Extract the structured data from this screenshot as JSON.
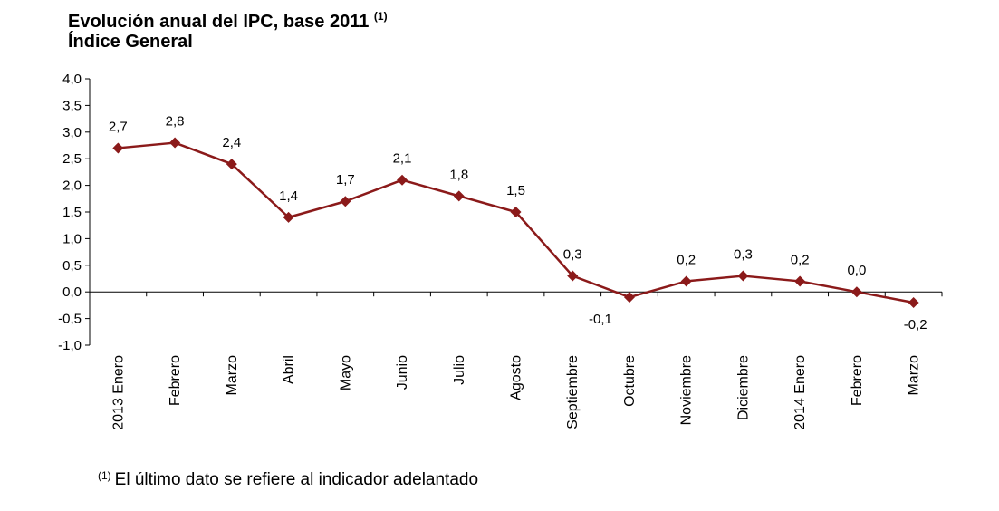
{
  "chart_data": {
    "type": "line",
    "title": "Evolución anual del IPC, base 2011",
    "title_note": "(1)",
    "subtitle": "Índice General",
    "categories": [
      "2013 Enero",
      "Febrero",
      "Marzo",
      "Abril",
      "Mayo",
      "Junio",
      "Julio",
      "Agosto",
      "Septiembre",
      "Octubre",
      "Noviembre",
      "Diciembre",
      "2014 Enero",
      "Febrero",
      "Marzo"
    ],
    "values": [
      2.7,
      2.8,
      2.4,
      1.4,
      1.7,
      2.1,
      1.8,
      1.5,
      0.3,
      -0.1,
      0.2,
      0.3,
      0.2,
      0.0,
      -0.2
    ],
    "data_labels": [
      "2,7",
      "2,8",
      "2,4",
      "1,4",
      "1,7",
      "2,1",
      "1,8",
      "1,5",
      "0,3",
      "-0,1",
      "0,2",
      "0,3",
      "0,2",
      "0,0",
      "-0,2"
    ],
    "ylim": [
      -1.0,
      4.0
    ],
    "yticks": [
      -1.0,
      -0.5,
      0.0,
      0.5,
      1.0,
      1.5,
      2.0,
      2.5,
      3.0,
      3.5,
      4.0
    ],
    "ytick_labels": [
      "-1,0",
      "-0,5",
      "0,0",
      "0,5",
      "1,0",
      "1,5",
      "2,0",
      "2,5",
      "3,0",
      "3,5",
      "4,0"
    ],
    "xlabel": "",
    "ylabel": "",
    "grid": false,
    "series_color": "#8B1A1A"
  },
  "footnote": {
    "marker": "(1)",
    "text": "El último dato se refiere al indicador adelantado"
  }
}
